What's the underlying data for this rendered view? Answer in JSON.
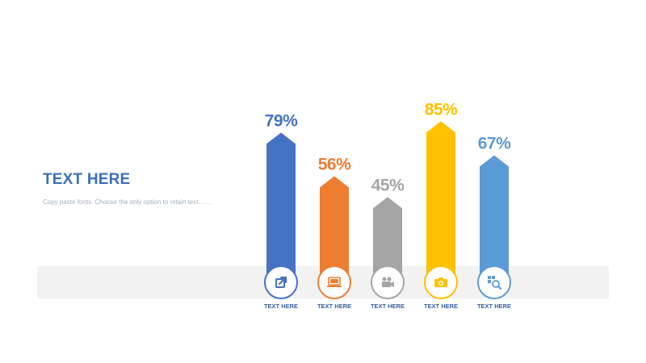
{
  "slide": {
    "heading": "TEXT HERE",
    "subtext": "Copy paste fonts. Choose the only option to retain text……"
  },
  "chart_data": {
    "type": "bar",
    "categories": [
      "TEXT HERE",
      "TEXT HERE",
      "TEXT HERE",
      "TEXT HERE",
      "TEXT HERE"
    ],
    "values": [
      79,
      56,
      45,
      85,
      67
    ],
    "data_labels": [
      "79%",
      "56%",
      "45%",
      "85%",
      "67%"
    ],
    "colors": [
      "#4472c4",
      "#ed7d31",
      "#a5a5a5",
      "#ffc000",
      "#5b9bd5"
    ],
    "icons": [
      "share-icon",
      "laptop-icon",
      "video-camera-icon",
      "camera-icon",
      "search-icon"
    ],
    "ylim": [
      0,
      100
    ],
    "title": "",
    "xlabel": "",
    "ylabel": "",
    "grid": false
  }
}
